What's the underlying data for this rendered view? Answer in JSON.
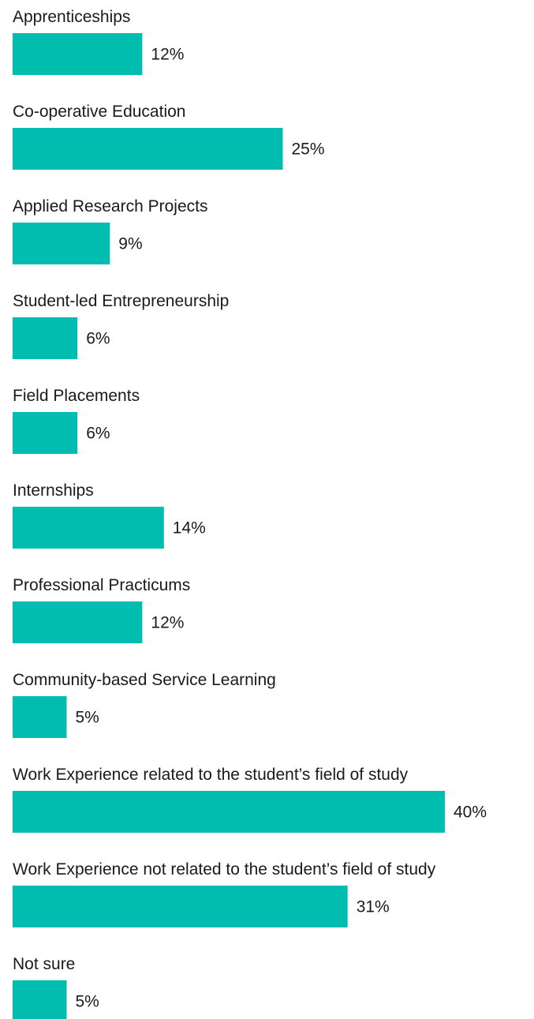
{
  "chart_data": {
    "type": "bar",
    "orientation": "horizontal",
    "categories": [
      "Apprenticeships",
      "Co-operative Education",
      "Applied Research Projects",
      "Student-led Entrepreneurship",
      "Field Placements",
      "Internships",
      "Professional Practicums",
      "Community-based Service Learning",
      "Work Experience related to the student’s field of study",
      "Work Experience not related to the student’s field of study",
      "Not sure"
    ],
    "values": [
      12,
      25,
      9,
      6,
      6,
      14,
      12,
      5,
      40,
      31,
      5
    ],
    "value_labels": [
      "12%",
      "25%",
      "9%",
      "6%",
      "6%",
      "14%",
      "12%",
      "5%",
      "40%",
      "31%",
      "5%"
    ],
    "unit": "%",
    "title": "",
    "xlabel": "",
    "ylabel": "",
    "xlim": [
      0,
      40
    ],
    "grid": false,
    "bar_color": "#00bdb0"
  }
}
